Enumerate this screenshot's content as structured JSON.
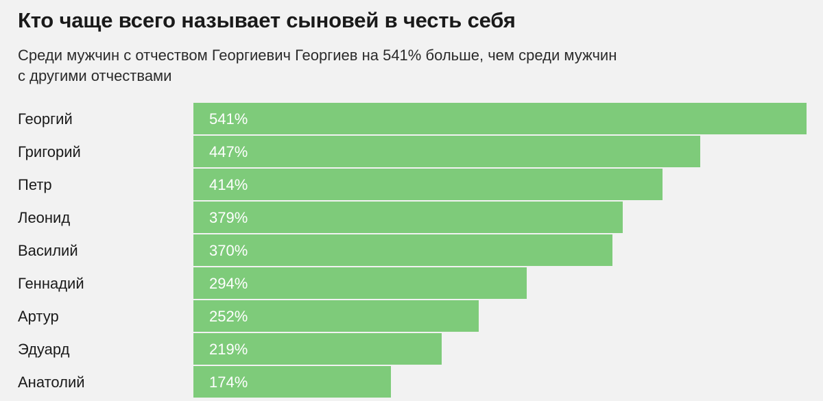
{
  "header": {
    "title": "Кто чаще всего называет сыновей в честь себя",
    "subtitle_line1": "Среди мужчин с отчеством Георгиевич Георгиев на 541% больше, чем среди мужчин",
    "subtitle_line2": "с другими отчествами"
  },
  "colors": {
    "bar": "#7ecb7a",
    "background": "#f2f2f2"
  },
  "chart_data": {
    "type": "bar",
    "orientation": "horizontal",
    "title": "Кто чаще всего называет сыновей в честь себя",
    "unit": "%",
    "categories": [
      "Георгий",
      "Григорий",
      "Петр",
      "Леонид",
      "Василий",
      "Геннадий",
      "Артур",
      "Эдуард",
      "Анатолий"
    ],
    "values": [
      541,
      447,
      414,
      379,
      370,
      294,
      252,
      219,
      174
    ],
    "value_labels": [
      "541%",
      "447%",
      "414%",
      "379%",
      "370%",
      "294%",
      "252%",
      "219%",
      "174%"
    ],
    "xlim": [
      0,
      541
    ],
    "grid": false,
    "legend": "none"
  }
}
